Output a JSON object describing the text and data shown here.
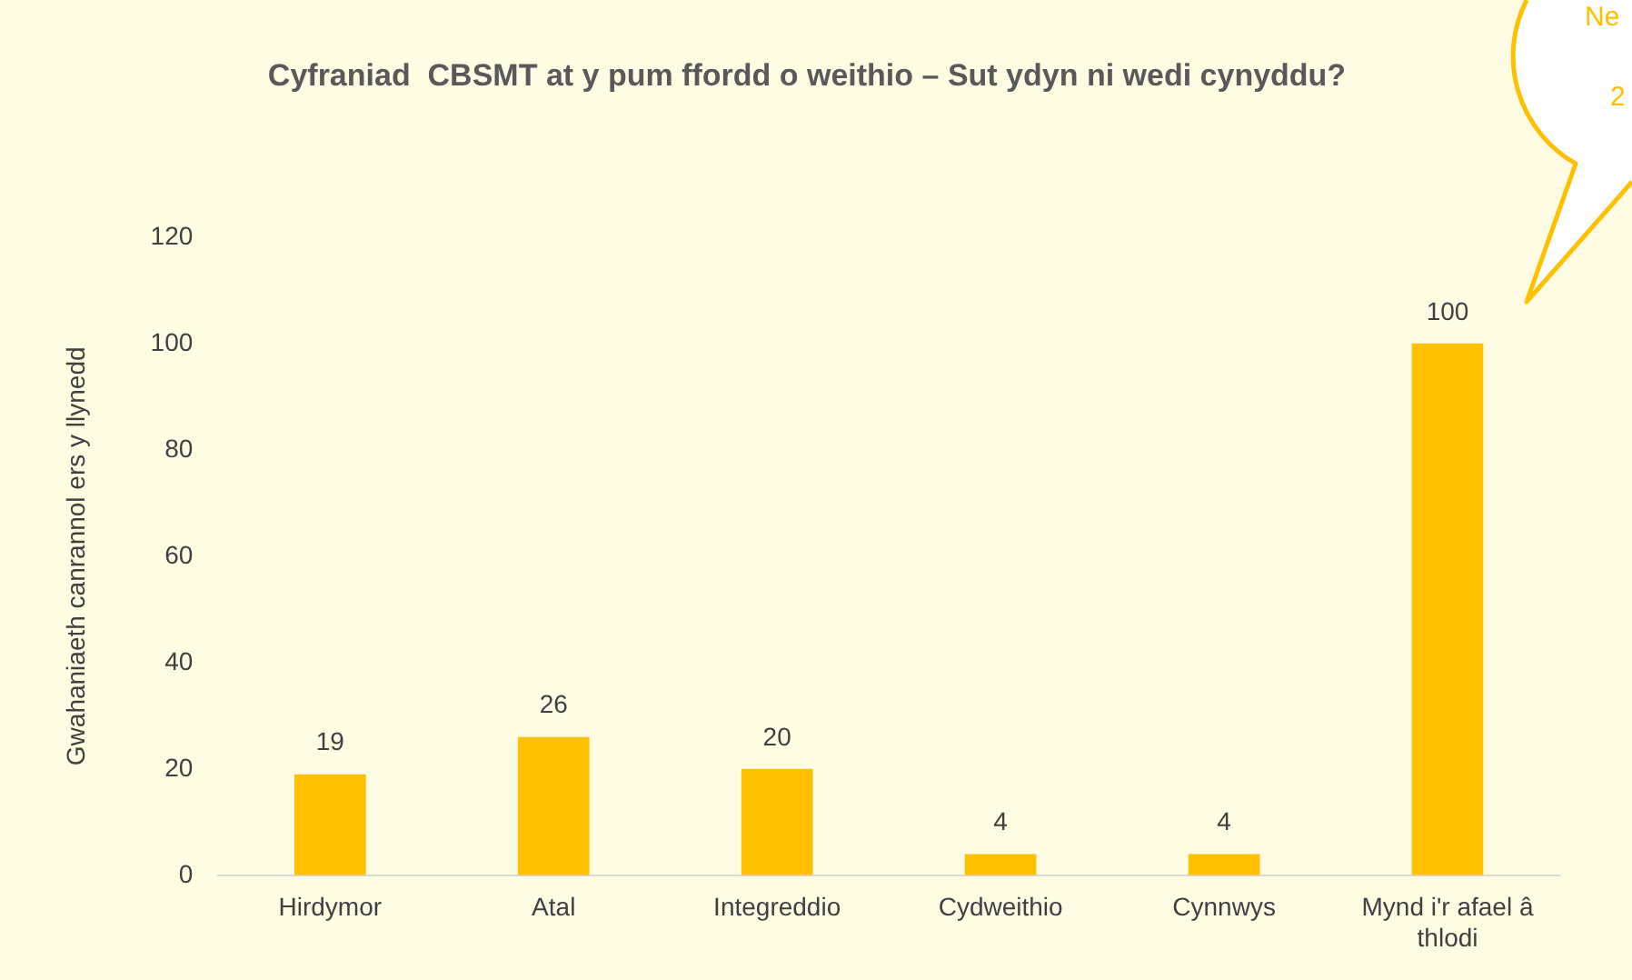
{
  "chart_data": {
    "type": "bar",
    "title": "Cyfraniad  CBSMT at y pum ffordd o weithio – Sut ydyn ni wedi cynyddu?",
    "ylabel": "Gwahaniaeth canrannol ers y llynedd",
    "categories": [
      "Hirdymor",
      "Atal",
      "Integreddio",
      "Cydweithio",
      "Cynnwys",
      "Mynd i'r afael â thlodi"
    ],
    "values": [
      19,
      26,
      20,
      4,
      4,
      100
    ],
    "color": "#ffc000",
    "ylim": [
      0,
      120
    ],
    "yticks": [
      0,
      20,
      40,
      60,
      80,
      100,
      120
    ],
    "grid": false,
    "legend": false,
    "data_labels": true,
    "annotations": [
      "Ne",
      "2"
    ]
  }
}
